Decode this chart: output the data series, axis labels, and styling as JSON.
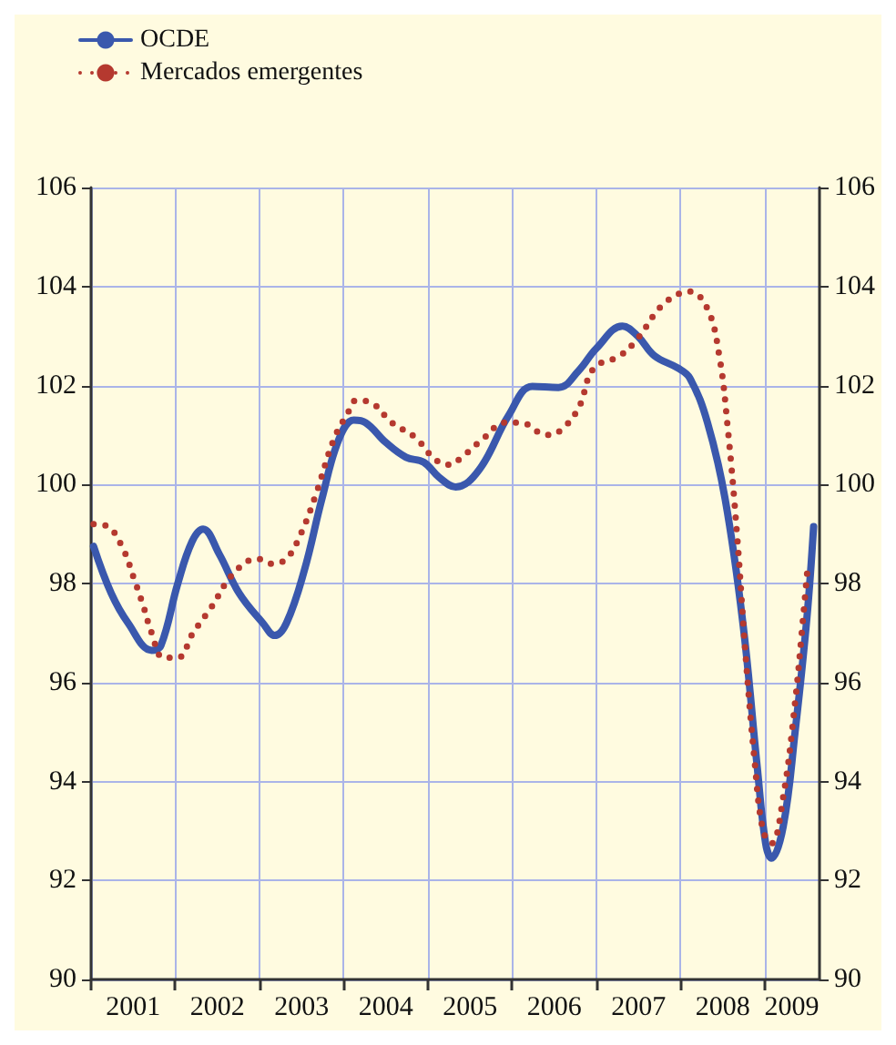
{
  "chart_data": {
    "type": "line",
    "xlim": [
      2001,
      2009.65
    ],
    "xticks": [
      {
        "value": 2001,
        "label": null
      },
      {
        "value": 2002,
        "label": null
      },
      {
        "value": 2003,
        "label": null
      },
      {
        "value": 2004,
        "label": null
      },
      {
        "value": 2005,
        "label": null
      },
      {
        "value": 2006,
        "label": null
      },
      {
        "value": 2007,
        "label": null
      },
      {
        "value": 2008,
        "label": null
      },
      {
        "value": 2009,
        "label": null
      },
      {
        "value": 2001.5,
        "label": "2001"
      },
      {
        "value": 2002.5,
        "label": "2002"
      },
      {
        "value": 2003.5,
        "label": "2003"
      },
      {
        "value": 2004.5,
        "label": "2004"
      },
      {
        "value": 2005.5,
        "label": "2005"
      },
      {
        "value": 2006.5,
        "label": "2006"
      },
      {
        "value": 2007.5,
        "label": "2007"
      },
      {
        "value": 2008.5,
        "label": "2008"
      },
      {
        "value": 2009.32,
        "label": "2009"
      }
    ],
    "ylim": [
      90,
      106
    ],
    "yticks": [
      90,
      92,
      94,
      96,
      98,
      100,
      102,
      104,
      106
    ],
    "y2lim": [
      90,
      106
    ],
    "y2ticks": [
      90,
      92,
      94,
      96,
      98,
      100,
      102,
      104,
      106
    ],
    "grid": true,
    "legend": "top left",
    "series": [
      {
        "name": "OCDE",
        "color": "#3a58ad",
        "line_style": "solid",
        "x": [
          2001.03,
          2001.24,
          2001.44,
          2001.72,
          2001.83,
          2002.03,
          2002.2,
          2002.33,
          2002.52,
          2002.76,
          2003.04,
          2003.18,
          2003.32,
          2003.53,
          2003.74,
          2003.94,
          2004.12,
          2004.26,
          2004.5,
          2004.74,
          2004.95,
          2005.13,
          2005.33,
          2005.61,
          2005.96,
          2006.24,
          2006.55,
          2006.79,
          2007.0,
          2007.31,
          2007.49,
          2007.69,
          2007.97,
          2008.11,
          2008.32,
          2008.53,
          2008.74,
          2008.91,
          2009.01,
          2009.08,
          2009.22,
          2009.36,
          2009.5,
          2009.58
        ],
        "values": [
          98.75,
          97.8,
          97.2,
          96.65,
          96.75,
          98.0,
          98.85,
          99.1,
          98.6,
          97.8,
          97.2,
          96.95,
          97.2,
          98.25,
          99.7,
          100.9,
          101.3,
          101.25,
          100.85,
          100.55,
          100.45,
          100.15,
          99.95,
          100.3,
          101.4,
          101.98,
          101.96,
          102.3,
          102.75,
          103.2,
          103.0,
          102.6,
          102.35,
          102.15,
          101.25,
          99.7,
          97.2,
          94.3,
          92.75,
          92.45,
          93.1,
          95.0,
          97.3,
          99.15
        ]
      },
      {
        "name": "Mercados emergentes",
        "color": "#b5392f",
        "line_style": "dotted",
        "x": [
          2001.03,
          2001.2,
          2001.38,
          2001.51,
          2001.62,
          2001.72,
          2001.86,
          2002.03,
          2002.21,
          2002.42,
          2002.69,
          2002.97,
          2003.15,
          2003.32,
          2003.49,
          2003.67,
          2003.88,
          2004.05,
          2004.15,
          2004.33,
          2004.57,
          2004.85,
          2005.09,
          2005.26,
          2005.4,
          2005.64,
          2005.92,
          2006.1,
          2006.41,
          2006.58,
          2006.79,
          2006.97,
          2007.28,
          2007.49,
          2007.8,
          2008.11,
          2008.32,
          2008.46,
          2008.56,
          2008.67,
          2008.77,
          2008.88,
          2008.98,
          2009.08,
          2009.22,
          2009.36,
          2009.46,
          2009.51
        ],
        "values": [
          99.2,
          99.15,
          98.7,
          98.1,
          97.55,
          97.0,
          96.5,
          96.5,
          97.0,
          97.5,
          98.2,
          98.5,
          98.4,
          98.5,
          99.0,
          99.8,
          100.9,
          101.45,
          101.7,
          101.65,
          101.25,
          100.95,
          100.5,
          100.4,
          100.55,
          100.9,
          101.25,
          101.25,
          101.0,
          101.1,
          101.55,
          102.35,
          102.6,
          102.95,
          103.65,
          103.9,
          103.55,
          102.6,
          101.15,
          99.0,
          96.6,
          94.4,
          93.0,
          92.75,
          93.7,
          95.6,
          97.4,
          98.35
        ]
      }
    ]
  }
}
